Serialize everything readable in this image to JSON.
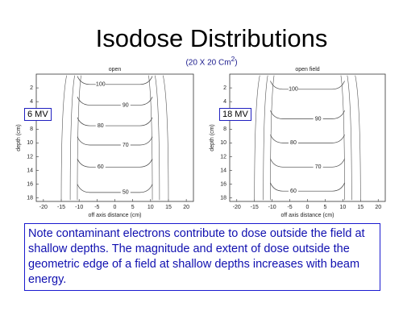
{
  "title": "Isodose Distributions",
  "subtitle": {
    "before": "(20 X 20 Cm",
    "sup": "2",
    "after": ")"
  },
  "plots": [
    {
      "label": "6 MV",
      "plot_title": "open",
      "y_label": "depth (cm)",
      "x_label": "off axis distance (cm)",
      "xlim": [
        -22,
        22
      ],
      "ylim": [
        0,
        18.5
      ],
      "xticks": [
        -20,
        -15,
        -10,
        -5,
        0,
        5,
        10,
        15,
        20
      ],
      "yticks": [
        2,
        4,
        6,
        8,
        10,
        12,
        14,
        16,
        18
      ],
      "contours": [
        {
          "level": 100,
          "depth": 1.5
        },
        {
          "level": 90,
          "depth": 4.5
        },
        {
          "level": 80,
          "depth": 7.5
        },
        {
          "level": 70,
          "depth": 10.3
        },
        {
          "level": 60,
          "depth": 13.5
        },
        {
          "level": 50,
          "depth": 17.2
        }
      ]
    },
    {
      "label": "18 MV",
      "plot_title": "open field",
      "y_label": "depth (cm)",
      "x_label": "off axis distance (cm)",
      "xlim": [
        -22,
        22
      ],
      "ylim": [
        0,
        18.5
      ],
      "xticks": [
        -20,
        -15,
        -10,
        -5,
        0,
        5,
        10,
        15,
        20
      ],
      "yticks": [
        2,
        4,
        6,
        8,
        10,
        12,
        14,
        16,
        18
      ],
      "contours": [
        {
          "level": 100,
          "depth": 2.2
        },
        {
          "level": 90,
          "depth": 6.5
        },
        {
          "level": 80,
          "depth": 10
        },
        {
          "level": 70,
          "depth": 13.5
        },
        {
          "level": 60,
          "depth": 17
        }
      ]
    }
  ],
  "note": "Note contaminant electrons contribute  to dose outside the field at shallow depths. The magnitude and extent of dose outside the geometric edge of a field at shallow depths increases with beam energy."
}
